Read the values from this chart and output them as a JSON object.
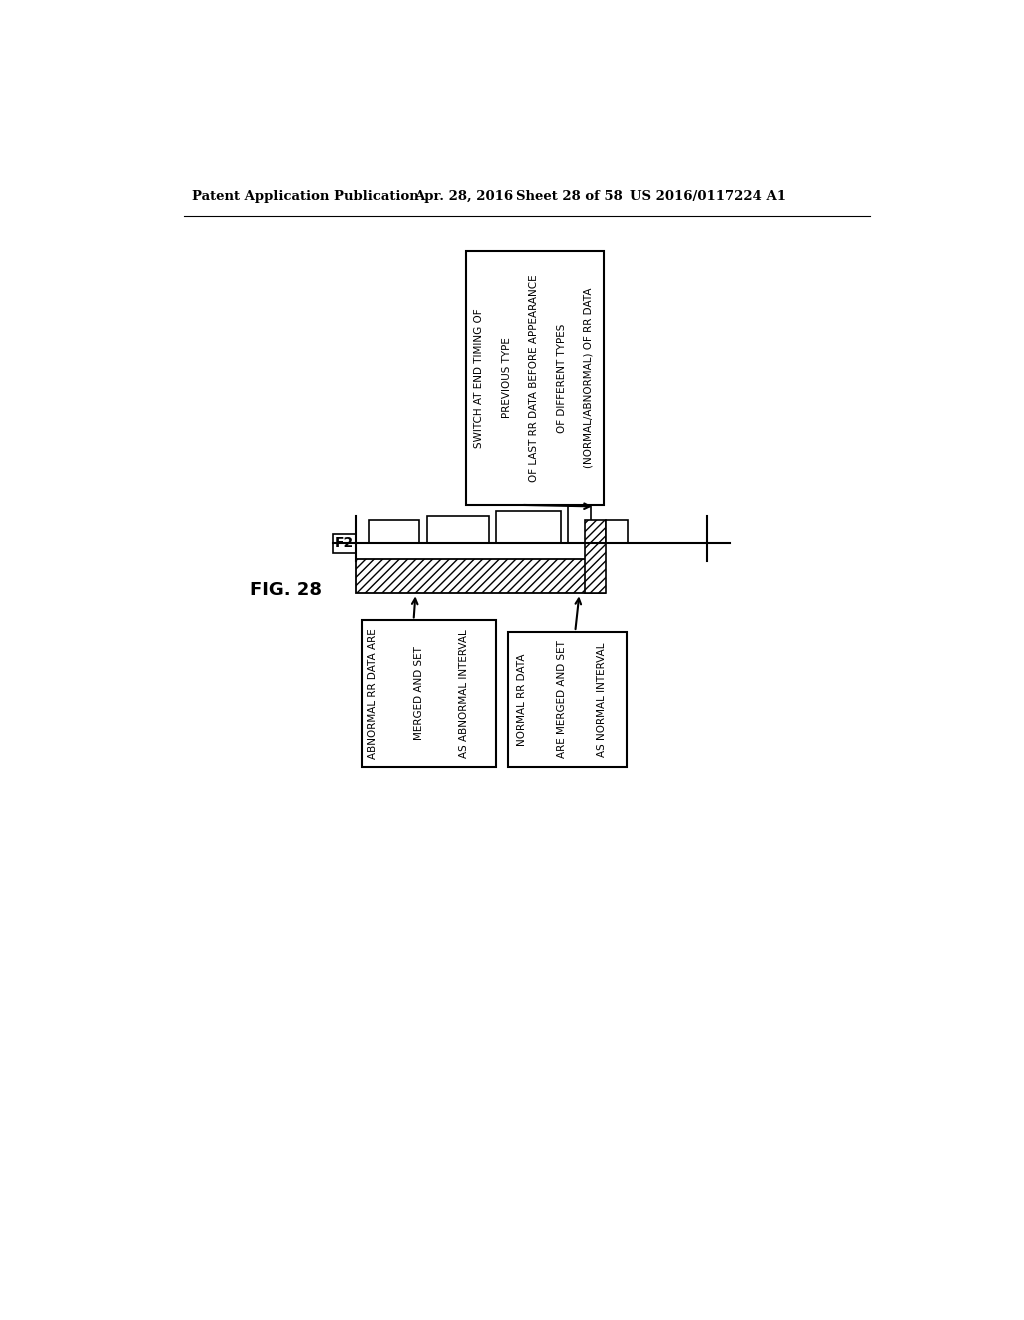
{
  "bg_color": "#ffffff",
  "header_text": "Patent Application Publication",
  "header_date": "Apr. 28, 2016",
  "header_sheet": "Sheet 28 of 58",
  "header_patent": "US 2016/0117224 A1",
  "fig_label": "FIG. 28",
  "f2_label": "F2",
  "top_box_lines": [
    "SWITCH AT END TIMING OF",
    "PREVIOUS TYPE",
    "OF LAST RR DATA BEFORE APPEARANCE",
    "OF DIFFERENT TYPES",
    "(NORMAL/ABNORMAL) OF RR DATA"
  ],
  "bottom_left_box_lines": [
    "ABNORMAL RR DATA ARE",
    "MERGED AND SET",
    "AS ABNORMAL INTERVAL"
  ],
  "bottom_right_box_lines": [
    "NORMAL RR DATA",
    "ARE MERGED AND SET",
    "AS NORMAL INTERVAL"
  ]
}
